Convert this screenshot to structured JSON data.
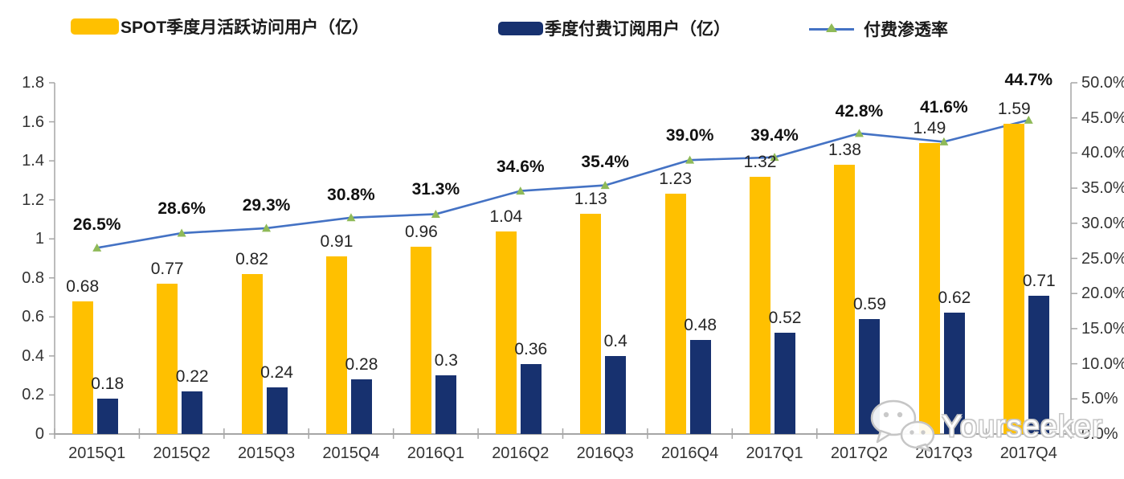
{
  "legend": {
    "items": [
      {
        "label": "SPOT季度月活跃访问用户（亿）",
        "swatch": "bar",
        "color": "#FFC000"
      },
      {
        "label": "季度付费订阅用户（亿）",
        "swatch": "bar",
        "color": "#17316F"
      },
      {
        "label": "付费渗透率",
        "swatch": "line-marker",
        "line_color": "#4472C4",
        "marker_color": "#8FBA58"
      }
    ]
  },
  "chart_data": {
    "type": "bar",
    "subtype": "clustered-bars-with-line-combo",
    "categories": [
      "2015Q1",
      "2015Q2",
      "2015Q3",
      "2015Q4",
      "2016Q1",
      "2016Q2",
      "2016Q3",
      "2016Q4",
      "2017Q1",
      "2017Q2",
      "2017Q3",
      "2017Q4"
    ],
    "series": [
      {
        "name": "SPOT季度月活跃访问用户（亿）",
        "type": "bar",
        "axis": "left",
        "color": "#FFC000",
        "values": [
          0.68,
          0.77,
          0.82,
          0.91,
          0.96,
          1.04,
          1.13,
          1.23,
          1.32,
          1.38,
          1.49,
          1.59
        ],
        "labels": [
          "0.68",
          "0.77",
          "0.82",
          "0.91",
          "0.96",
          "1.04",
          "1.13",
          "1.23",
          "1.32",
          "1.38",
          "1.49",
          "1.59"
        ]
      },
      {
        "name": "季度付费订阅用户（亿）",
        "type": "bar",
        "axis": "left",
        "color": "#17316F",
        "values": [
          0.18,
          0.22,
          0.24,
          0.28,
          0.3,
          0.36,
          0.4,
          0.48,
          0.52,
          0.59,
          0.62,
          0.71
        ],
        "labels": [
          "0.18",
          "0.22",
          "0.24",
          "0.28",
          "0.3",
          "0.36",
          "0.4",
          "0.48",
          "0.52",
          "0.59",
          "0.62",
          "0.71"
        ]
      },
      {
        "name": "付费渗透率",
        "type": "line",
        "axis": "right",
        "color": "#4472C4",
        "marker": "triangle",
        "marker_color": "#8FBA58",
        "values": [
          26.5,
          28.6,
          29.3,
          30.8,
          31.3,
          34.6,
          35.4,
          39.0,
          39.4,
          42.8,
          41.6,
          44.7
        ],
        "labels": [
          "26.5%",
          "28.6%",
          "29.3%",
          "30.8%",
          "31.3%",
          "34.6%",
          "35.4%",
          "39.0%",
          "39.4%",
          "42.8%",
          "41.6%",
          "44.7%"
        ]
      }
    ],
    "left_axis": {
      "min": 0,
      "max": 1.8,
      "tick_labels": [
        "0",
        "0.2",
        "0.4",
        "0.6",
        "0.8",
        "1",
        "1.2",
        "1.4",
        "1.6",
        "1.8"
      ]
    },
    "right_axis": {
      "min": 0,
      "max": 50,
      "tick_labels": [
        "0.0%",
        "5.0%",
        "10.0%",
        "15.0%",
        "20.0%",
        "25.0%",
        "30.0%",
        "35.0%",
        "40.0%",
        "45.0%",
        "50.0%"
      ]
    },
    "grid": false,
    "legend_position": "top",
    "layout": {
      "axis_color": "#A6A6A6",
      "pct_label_dy": [
        -28,
        -30,
        -28,
        -28,
        -30,
        -30,
        -29,
        -30,
        -27,
        -27,
        -42,
        -49
      ]
    }
  },
  "watermark": {
    "text": "Yourseeker",
    "icon": "wechat-icon"
  }
}
